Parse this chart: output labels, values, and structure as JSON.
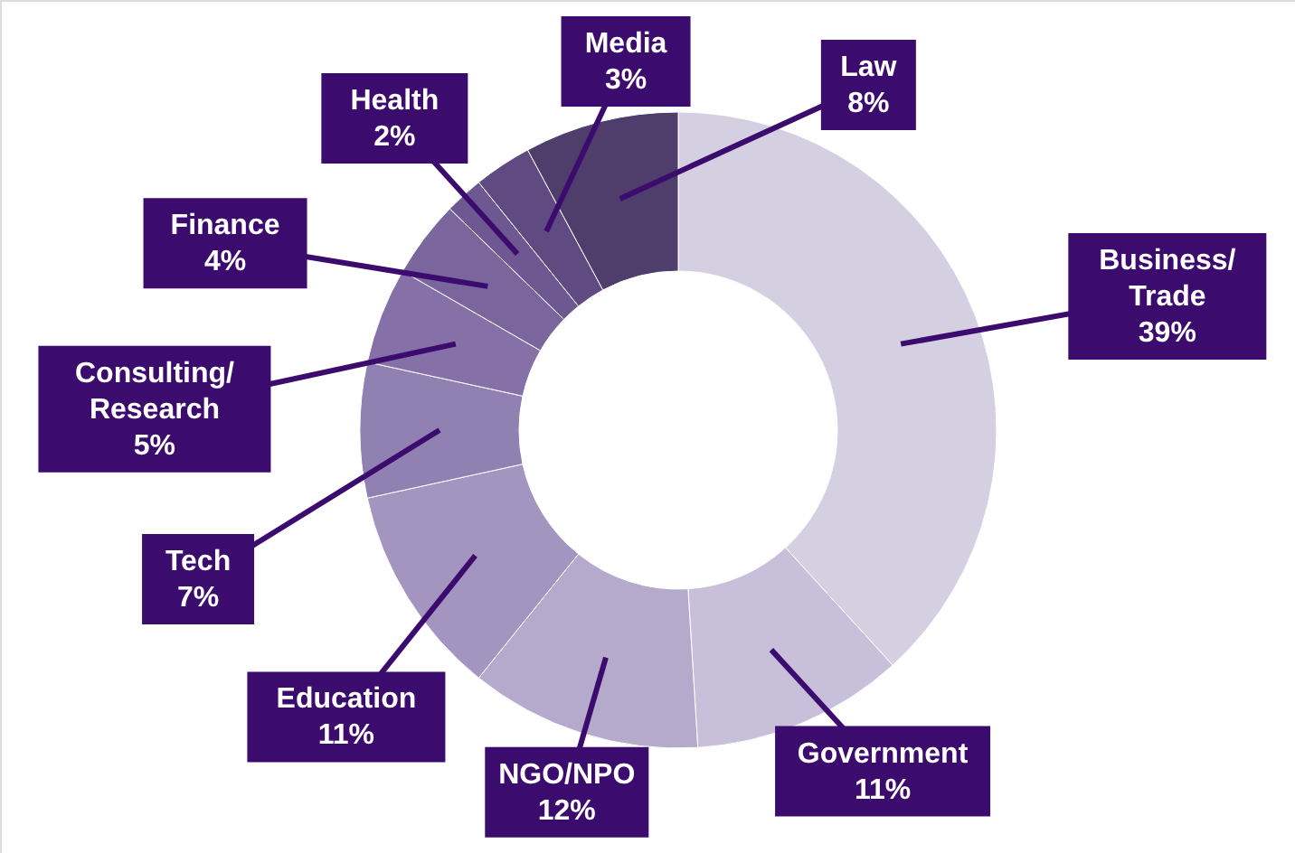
{
  "chart_data": {
    "type": "donut",
    "categories": [
      "Business/Trade",
      "Government",
      "NGO/NPO",
      "Education",
      "Tech",
      "Consulting/Research",
      "Finance",
      "Health",
      "Media",
      "Law"
    ],
    "values": [
      39,
      11,
      12,
      11,
      7,
      5,
      4,
      2,
      3,
      8
    ],
    "value_labels": [
      "39%",
      "11%",
      "12%",
      "11%",
      "7%",
      "5%",
      "4%",
      "2%",
      "3%",
      "8%"
    ],
    "colors": [
      "#d4d0e1",
      "#c8c0da",
      "#b6aacc",
      "#a395bf",
      "#9180b2",
      "#8571a7",
      "#7a659d",
      "#6e5891",
      "#604a82",
      "#4f3d6c"
    ]
  }
}
